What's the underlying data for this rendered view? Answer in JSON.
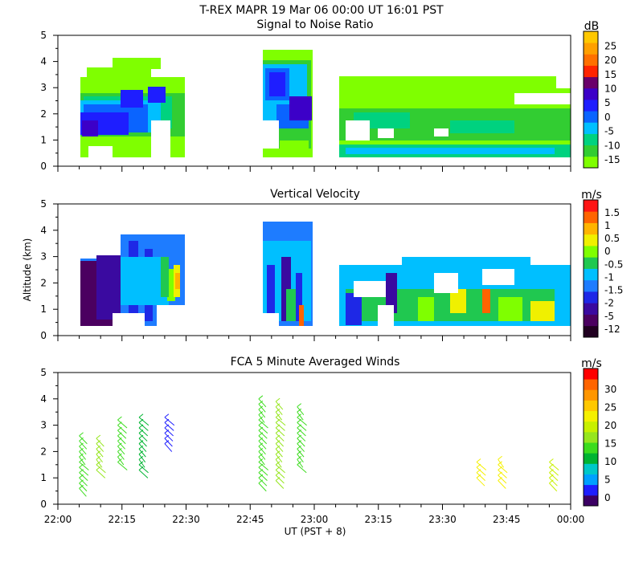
{
  "header": {
    "title": "T-REX   MAPR 19 Mar 06   00:00 UT   16:01   PST"
  },
  "x_axis": {
    "label": "UT  (PST + 8)",
    "ticks": [
      "22:00",
      "22:15",
      "22:30",
      "22:45",
      "23:00",
      "23:15",
      "23:30",
      "23:45",
      "00:00"
    ],
    "range_minutes": [
      0,
      120
    ]
  },
  "chart_data": [
    {
      "type": "heatmap",
      "title": "Signal to Noise Ratio",
      "ylabel": "",
      "ylim": [
        0,
        5
      ],
      "yticks": [
        "0",
        "1",
        "2",
        "3",
        "4",
        "5"
      ],
      "colorbar": {
        "unit": "dB",
        "labels": [
          "-15",
          "-10",
          "-5",
          "0",
          "5",
          "10",
          "15",
          "20",
          "25"
        ],
        "colors": [
          "#7fff00",
          "#32cd32",
          "#00d27f",
          "#00bfff",
          "#0a64ff",
          "#1e1eff",
          "#3c00c8",
          "#6a006a",
          "#ff2400",
          "#ff7000",
          "#ffa000",
          "#ffc800"
        ]
      },
      "data_segments_minutes": [
        [
          5,
          29
        ],
        [
          48,
          60
        ],
        [
          66,
          120
        ]
      ],
      "altitude_top_km": [
        2.8,
        4.3,
        2.8
      ]
    },
    {
      "type": "heatmap",
      "title": "Vertical Velocity",
      "ylabel": "Altitude (km)",
      "ylim": [
        0,
        5
      ],
      "yticks": [
        "0",
        "1",
        "2",
        "3",
        "4",
        "5"
      ],
      "colorbar": {
        "unit": "m/s",
        "labels": [
          "-12",
          "-5",
          "-2",
          "-1.5",
          "-1",
          "-0.5",
          "0",
          "0.5",
          "1",
          "1.5"
        ],
        "colors": [
          "#200020",
          "#4b0060",
          "#3a0aa0",
          "#1e28e6",
          "#1e7cff",
          "#00bfff",
          "#20c850",
          "#7fff00",
          "#f0f000",
          "#ffb400",
          "#ff6400",
          "#ff1414"
        ]
      },
      "data_segments_minutes": [
        [
          5,
          29
        ],
        [
          48,
          60
        ],
        [
          66,
          120
        ]
      ],
      "altitude_top_km": [
        3.8,
        4.2,
        2.8
      ]
    },
    {
      "type": "scatter",
      "title": "FCA 5 Minute Averaged Winds",
      "ylabel": "",
      "ylim": [
        0,
        5
      ],
      "yticks": [
        "0",
        "1",
        "2",
        "3",
        "4",
        "5"
      ],
      "colorbar": {
        "unit": "m/s",
        "labels": [
          "0",
          "5",
          "10",
          "15",
          "20",
          "25",
          "30"
        ],
        "colors": [
          "#3c0064",
          "#1e1eff",
          "#00a0ff",
          "#00c8c8",
          "#00b432",
          "#3cdc1e",
          "#96e61e",
          "#c8f000",
          "#f5f000",
          "#ffc800",
          "#ff9600",
          "#ff6400",
          "#ff0000"
        ]
      },
      "profiles": [
        {
          "t": 5,
          "alt_range": [
            0.6,
            2.6
          ],
          "speed": 13
        },
        {
          "t": 9,
          "alt_range": [
            1.3,
            2.5
          ],
          "speed": 15
        },
        {
          "t": 14,
          "alt_range": [
            1.6,
            3.3
          ],
          "speed": 13
        },
        {
          "t": 19,
          "alt_range": [
            1.3,
            3.3
          ],
          "speed": 10
        },
        {
          "t": 25,
          "alt_range": [
            2.3,
            3.3
          ],
          "speed": 3
        },
        {
          "t": 47,
          "alt_range": [
            0.8,
            4.1
          ],
          "speed": 12
        },
        {
          "t": 51,
          "alt_range": [
            0.9,
            3.9
          ],
          "speed": 14
        },
        {
          "t": 56,
          "alt_range": [
            1.5,
            3.8
          ],
          "speed": 13
        },
        {
          "t": 98,
          "alt_range": [
            1.0,
            1.6
          ],
          "speed": 20
        },
        {
          "t": 103,
          "alt_range": [
            0.9,
            1.8
          ],
          "speed": 19
        },
        {
          "t": 115,
          "alt_range": [
            0.8,
            1.6
          ],
          "speed": 17
        }
      ]
    }
  ]
}
